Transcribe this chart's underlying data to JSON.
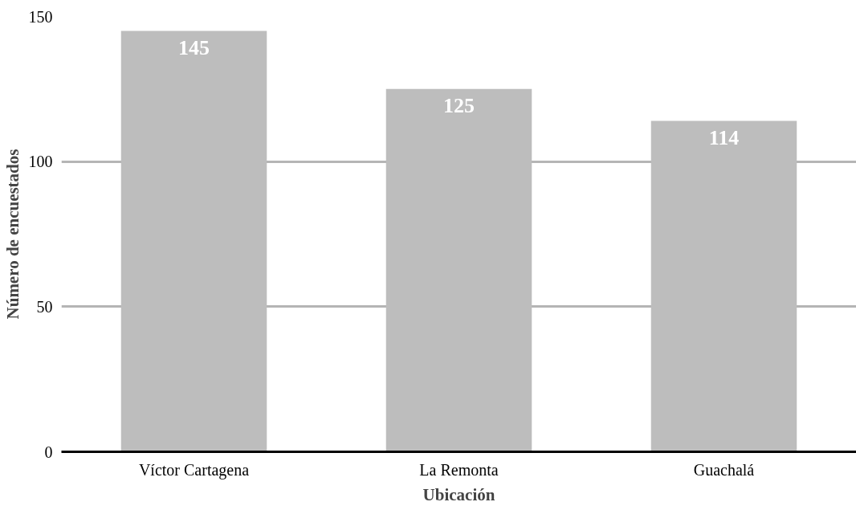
{
  "chart_data": {
    "type": "bar",
    "xlabel": "Ubicación",
    "ylabel": "Número de encuestados",
    "categories": [
      "Víctor Cartagena",
      "La Remonta",
      "Guachalá"
    ],
    "values": [
      145,
      125,
      114
    ],
    "color": "#bdbdbd",
    "ylim": [
      0,
      150
    ],
    "yticks": [
      0,
      50,
      100,
      150
    ],
    "grid": "y",
    "data_labels": true
  }
}
